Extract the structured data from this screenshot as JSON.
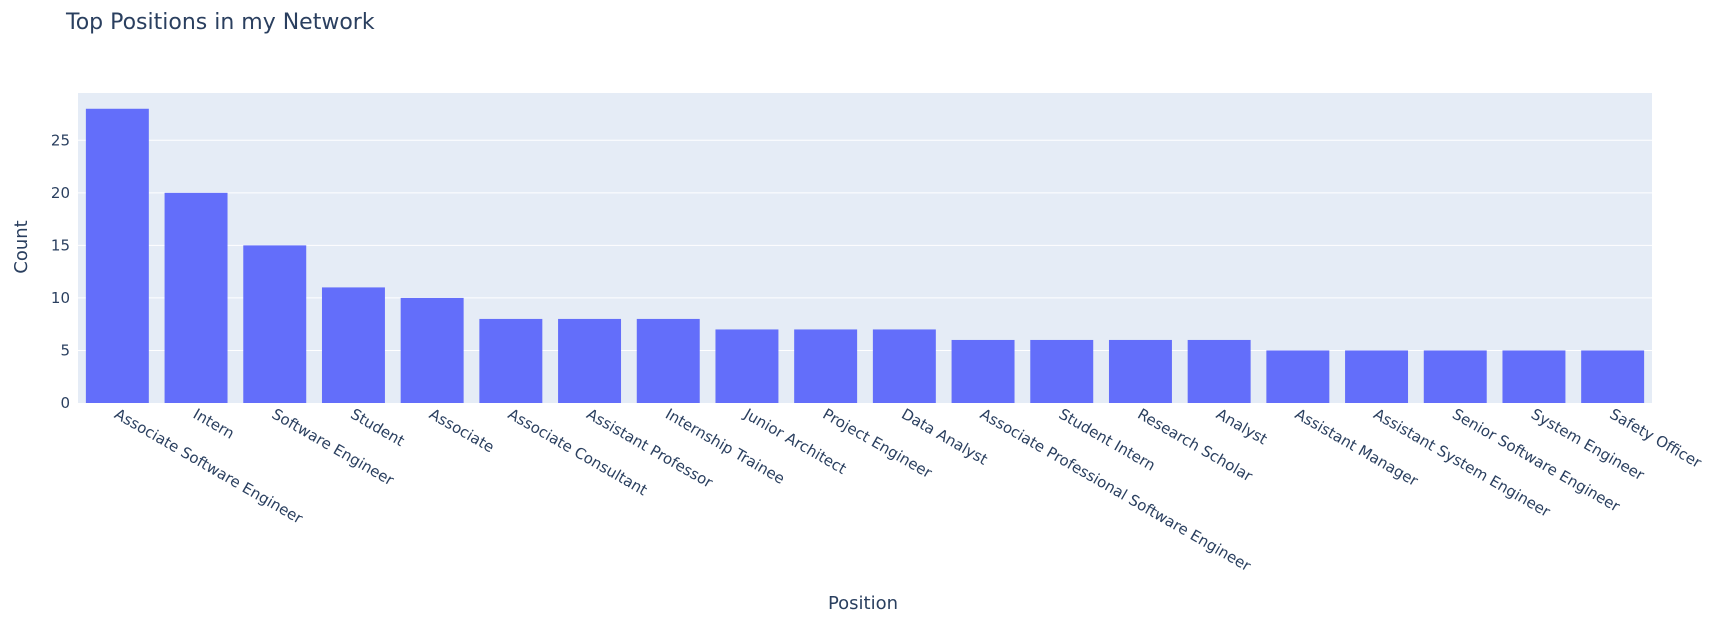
{
  "chart_data": {
    "type": "bar",
    "title": "Top Positions in my Network",
    "xlabel": "Position",
    "ylabel": "Count",
    "categories": [
      "Associate Software Engineer",
      "Intern",
      "Software Engineer",
      "Student",
      "Associate",
      "Associate Consultant",
      "Assistant Professor",
      "Internship Trainee",
      "Junior Architect",
      "Project Engineer",
      "Data Analyst",
      "Associate Professional Software Engineer",
      "Student Intern",
      "Research Scholar",
      "Analyst",
      "Assistant Manager",
      "Assistant System Engineer",
      "Senior Software Engineer",
      "System Engineer",
      "Safety Officer"
    ],
    "values": [
      28,
      20,
      15,
      11,
      10,
      8,
      8,
      8,
      7,
      7,
      7,
      6,
      6,
      6,
      6,
      5,
      5,
      5,
      5,
      5
    ],
    "yticks": [
      0,
      5,
      10,
      15,
      20,
      25
    ],
    "ylim": [
      0,
      29.5
    ],
    "grid": true,
    "legend": "none",
    "colors": {
      "bar": "#636efa",
      "plot_background": "#e5ecf6",
      "grid": "#ffffff",
      "text": "#2a3f5f"
    }
  }
}
